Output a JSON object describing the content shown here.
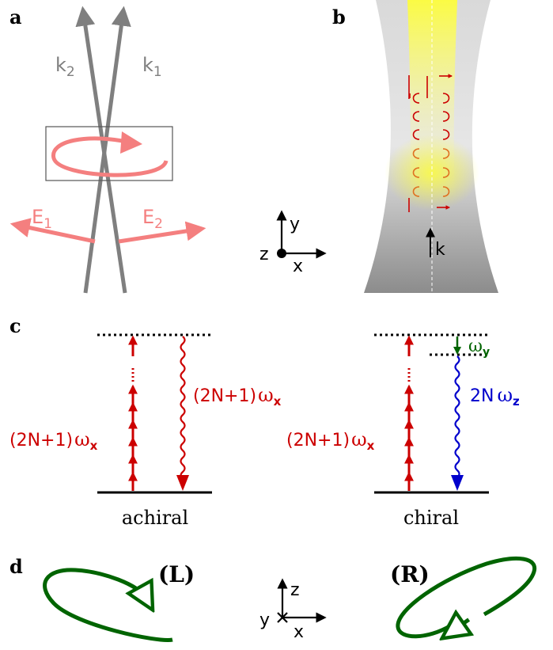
{
  "panels": {
    "a": {
      "label": "a",
      "k1_main": "k",
      "k1_sub": "1",
      "k2_main": "k",
      "k2_sub": "2",
      "e1_main": "E",
      "e1_sub": "1",
      "e2_main": "E",
      "e2_sub": "2"
    },
    "b": {
      "label": "b",
      "k_label": "k"
    },
    "axes_xy": {
      "x": "x",
      "y": "y",
      "z": "z"
    },
    "c": {
      "label": "c",
      "achiral_caption": "achiral",
      "chiral_caption": "chiral",
      "left_label_text": "(2N+1)",
      "left_label_omega": "ω",
      "left_label_sub": "x",
      "achiral_emit_text": "(2N+1)",
      "achiral_emit_omega": "ω",
      "achiral_emit_sub": "x",
      "chiral_pump_text": "(2N+1)",
      "chiral_pump_omega": "ω",
      "chiral_pump_sub": "x",
      "chiral_emit_text": "2N",
      "chiral_emit_omega": "ω",
      "chiral_emit_sub": "z",
      "omega_y": "ω",
      "omega_y_sub": "y"
    },
    "d": {
      "label": "d",
      "left_handed": "(L)",
      "right_handed": "(R)"
    },
    "axes_xz": {
      "x": "x",
      "y": "y",
      "z": "z"
    }
  },
  "colors": {
    "gray": "#7f7f7f",
    "pink": "#f47f7f",
    "red": "#cc0000",
    "blue": "#0000cc",
    "green": "#006400",
    "yellow": "#ffff33"
  }
}
